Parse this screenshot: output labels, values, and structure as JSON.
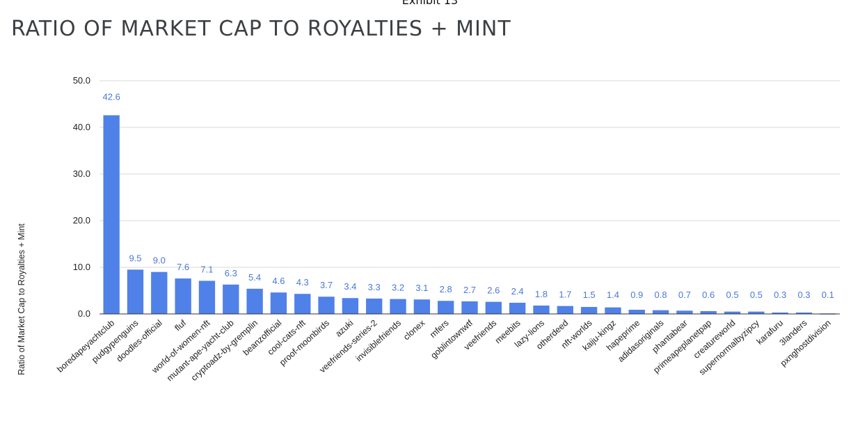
{
  "header": {
    "exhibit": "Exhibit 13"
  },
  "chart_data": {
    "type": "bar",
    "title": "RATIO OF MARKET CAP TO ROYALTIES + MINT",
    "ylabel": "Ratio of Market Cap to Royalties + Mint",
    "xlabel": "",
    "ylim": [
      0,
      50
    ],
    "yticks": [
      "0.0",
      "10.0",
      "20.0",
      "30.0",
      "40.0",
      "50.0"
    ],
    "grid": true,
    "bar_color": "#4f81e8",
    "label_color": "#4a78d6",
    "categories": [
      "boredapeyachtclub",
      "pudgypenguins",
      "doodles-official",
      "fluf",
      "world-of-women-nft",
      "mutant-ape-yacht-club",
      "cryptoadz-by-gremplin",
      "beanzofficial",
      "cool-cats-nft",
      "proof-moonbirds",
      "azuki",
      "veefriends-series-2",
      "invisiblefriends",
      "clonex",
      "mfers",
      "goblintownwtf",
      "veefriends",
      "meebits",
      "lazy-lions",
      "otherdeed",
      "nft-worlds",
      "kaiju-kingz",
      "hapeprime",
      "adidasoriginals",
      "phantabear",
      "primeapeplanetpap",
      "creatureworld",
      "supernormalbyzipcy",
      "karafuru",
      "3landers",
      "pxnghostdivision"
    ],
    "values": [
      42.6,
      9.5,
      9.0,
      7.6,
      7.1,
      6.3,
      5.4,
      4.6,
      4.3,
      3.7,
      3.4,
      3.3,
      3.2,
      3.1,
      2.8,
      2.7,
      2.6,
      2.4,
      1.8,
      1.7,
      1.5,
      1.4,
      0.9,
      0.8,
      0.7,
      0.6,
      0.5,
      0.5,
      0.3,
      0.3,
      0.1
    ],
    "value_labels": [
      "42.6",
      "9.5",
      "9.0",
      "7.6",
      "7.1",
      "6.3",
      "5.4",
      "4.6",
      "4.3",
      "3.7",
      "3.4",
      "3.3",
      "3.2",
      "3.1",
      "2.8",
      "2.7",
      "2.6",
      "2.4",
      "1.8",
      "1.7",
      "1.5",
      "1.4",
      "0.9",
      "0.8",
      "0.7",
      "0.6",
      "0.5",
      "0.5",
      "0.3",
      "0.3",
      "0.1"
    ]
  }
}
